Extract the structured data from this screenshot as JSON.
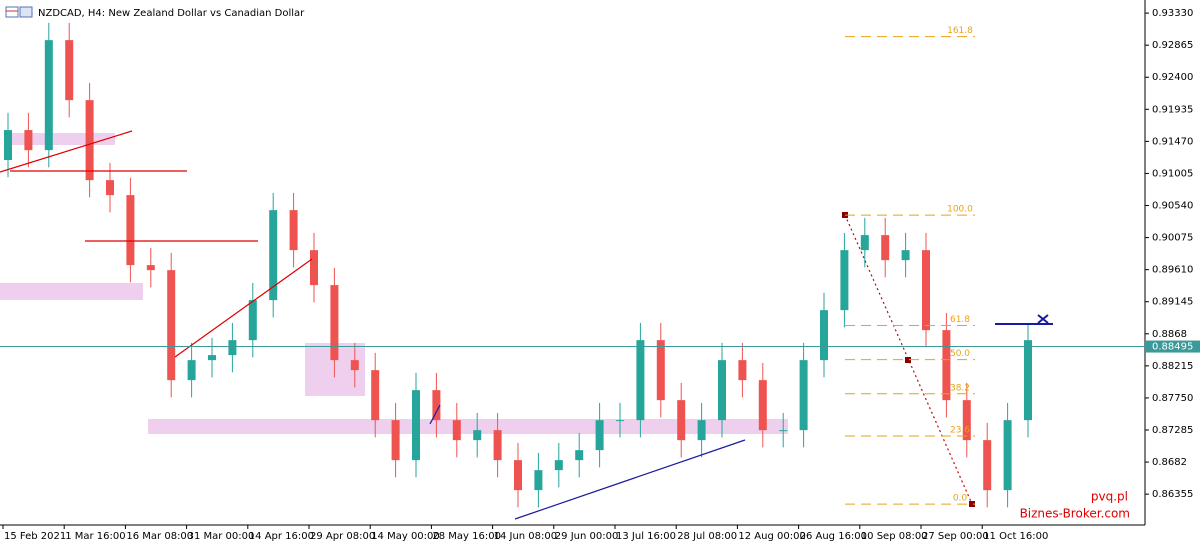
{
  "chart_data": {
    "type": "candlestick",
    "title": "NZDCAD, H4:  New Zealand Dollar vs Canadian Dollar",
    "categories": [
      "15 Feb 2021",
      null,
      null,
      "1 Mar 16:00",
      null,
      null,
      "16 Mar 08:00",
      null,
      null,
      "31 Mar 00:00",
      null,
      null,
      "14 Apr 16:00",
      null,
      null,
      "29 Apr 08:00",
      null,
      null,
      "14 May 00:00",
      null,
      null,
      "28 May 16:00",
      null,
      null,
      "14 Jun 08:00",
      null,
      null,
      "29 Jun 00:00",
      null,
      null,
      "13 Jul 16:00",
      null,
      null,
      "28 Jul 08:00",
      null,
      null,
      "12 Aug 00:00",
      null,
      null,
      "26 Aug 16:00",
      null,
      null,
      "10 Sep 08:00",
      null,
      null,
      "27 Sep 00:00",
      null,
      null,
      "11 Oct 16:00",
      null,
      null
    ],
    "open": [
      0.912,
      0.91634,
      0.91343,
      0.92938,
      0.92068,
      0.90908,
      0.90691,
      0.89676,
      0.89603,
      0.88008,
      0.88298,
      0.88371,
      0.88588,
      0.89168,
      0.90473,
      0.89893,
      0.89386,
      0.88298,
      0.88153,
      0.87428,
      0.86848,
      0.87863,
      0.87428,
      0.87138,
      0.87283,
      0.86848,
      0.86413,
      0.86703,
      0.86848,
      0.86993,
      0.87428,
      0.87428,
      0.88588,
      0.87718,
      0.87138,
      0.87428,
      0.88298,
      0.88008,
      0.87283,
      0.87283,
      0.88298,
      0.89023,
      0.89893,
      0.90111,
      0.89748,
      0.89893,
      0.88733,
      0.87718,
      0.87138,
      0.86413,
      0.87428
    ],
    "high": [
      0.91884,
      0.91884,
      0.93188,
      0.93188,
      0.92318,
      0.91158,
      0.90941,
      0.89926,
      0.89853,
      0.88548,
      0.88621,
      0.88838,
      0.89418,
      0.90723,
      0.90723,
      0.90143,
      0.89636,
      0.88548,
      0.88403,
      0.87678,
      0.88113,
      0.88113,
      0.87678,
      0.87533,
      0.87533,
      0.87098,
      0.86953,
      0.87098,
      0.87243,
      0.87678,
      0.87678,
      0.88838,
      0.88838,
      0.87968,
      0.87678,
      0.88548,
      0.88548,
      0.88258,
      0.87533,
      0.88548,
      0.89273,
      0.90143,
      0.90361,
      0.90361,
      0.90143,
      0.90143,
      0.88983,
      0.87968,
      0.87388,
      0.87678,
      0.88838
    ],
    "low": [
      0.9095,
      0.91093,
      0.91093,
      0.91818,
      0.90658,
      0.90441,
      0.89426,
      0.89353,
      0.87758,
      0.87758,
      0.88048,
      0.88121,
      0.88338,
      0.88918,
      0.89643,
      0.89136,
      0.88048,
      0.87903,
      0.87178,
      0.86598,
      0.86598,
      0.87178,
      0.86888,
      0.86888,
      0.86598,
      0.86163,
      0.86163,
      0.86453,
      0.86598,
      0.86743,
      0.87178,
      0.87178,
      0.87468,
      0.86888,
      0.86888,
      0.87178,
      0.87758,
      0.87033,
      0.87033,
      0.87033,
      0.88048,
      0.88773,
      0.89643,
      0.89498,
      0.89498,
      0.88483,
      0.87468,
      0.86888,
      0.86163,
      0.86163,
      0.87178
    ],
    "close": [
      0.91634,
      0.91343,
      0.92938,
      0.92068,
      0.90908,
      0.90691,
      0.89676,
      0.89603,
      0.88008,
      0.88298,
      0.88371,
      0.88588,
      0.89168,
      0.90473,
      0.89893,
      0.89386,
      0.88298,
      0.88153,
      0.87428,
      0.86848,
      0.87863,
      0.87428,
      0.87138,
      0.87283,
      0.86848,
      0.86413,
      0.86703,
      0.86848,
      0.86993,
      0.87428,
      0.87428,
      0.88588,
      0.87718,
      0.87138,
      0.87428,
      0.88298,
      0.88008,
      0.87283,
      0.87283,
      0.88298,
      0.89023,
      0.89893,
      0.90111,
      0.89748,
      0.89893,
      0.88733,
      0.87718,
      0.87138,
      0.86413,
      0.87428,
      0.88588
    ],
    "up_color": "#26a69a",
    "down_color": "#ef5350",
    "ylim": [
      0.8598,
      0.9352
    ],
    "yticks": [
      {
        "value": 0.9333,
        "label": "0.93330"
      },
      0.92865,
      {
        "value": 0.924,
        "label": "0.92400"
      },
      0.91935,
      {
        "value": 0.9147,
        "label": "0.91470"
      },
      0.91005,
      {
        "value": 0.9054,
        "label": "0.90540"
      },
      0.90075,
      {
        "value": 0.8961,
        "label": "0.89610"
      },
      0.89145,
      0.8868,
      0.88215,
      {
        "value": 0.8775,
        "label": "0.87750"
      },
      0.87285,
      0.8682,
      0.86355
    ],
    "current_price": 0.88495,
    "fibonacci": {
      "high": 0.904,
      "low": 0.8621,
      "color": "#e8a317",
      "levels": [
        161.8,
        {
          "value": 100,
          "label": "100.0"
        },
        61.8,
        {
          "value": 50,
          "label": "50.0"
        },
        38.2,
        23.6,
        {
          "value": 0,
          "label": "0.0"
        }
      ]
    },
    "watermarks": [
      "pvq.pl",
      "Biznes-Broker.com"
    ]
  }
}
